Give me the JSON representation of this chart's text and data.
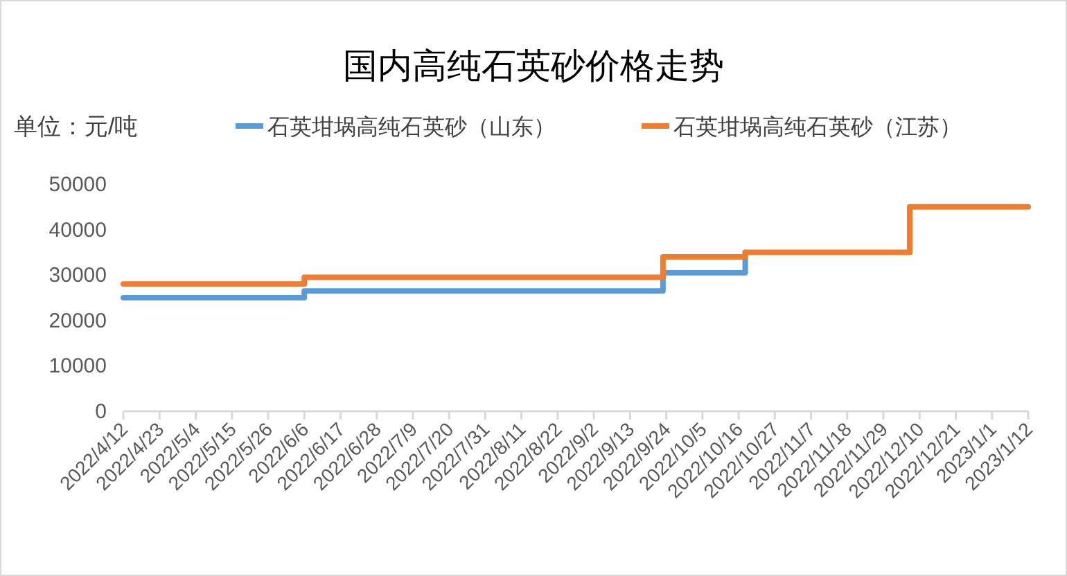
{
  "chart_data": {
    "type": "step",
    "title": "国内高纯石英砂价格走势",
    "annotations": [
      "单位：元/吨"
    ],
    "legend": "top",
    "grid": false,
    "xlim": [
      "2022-04-12",
      "2023-01-12"
    ],
    "xticks": [
      {
        "value": "2022-04-12",
        "label": "2022/4/12"
      },
      {
        "value": "2022-04-23",
        "label": "2022/4/23"
      },
      {
        "value": "2022-05-04",
        "label": "2022/5/4"
      },
      {
        "value": "2022-05-15",
        "label": "2022/5/15"
      },
      {
        "value": "2022-05-26",
        "label": "2022/5/26"
      },
      {
        "value": "2022-06-06",
        "label": "2022/6/6"
      },
      {
        "value": "2022-06-17",
        "label": "2022/6/17"
      },
      {
        "value": "2022-06-28",
        "label": "2022/6/28"
      },
      {
        "value": "2022-07-09",
        "label": "2022/7/9"
      },
      {
        "value": "2022-07-20",
        "label": "2022/7/20"
      },
      {
        "value": "2022-07-31",
        "label": "2022/7/31"
      },
      {
        "value": "2022-08-11",
        "label": "2022/8/11"
      },
      {
        "value": "2022-08-22",
        "label": "2022/8/22"
      },
      {
        "value": "2022-09-02",
        "label": "2022/9/2"
      },
      {
        "value": "2022-09-13",
        "label": "2022/9/13"
      },
      {
        "value": "2022-09-24",
        "label": "2022/9/24"
      },
      {
        "value": "2022-10-05",
        "label": "2022/10/5"
      },
      {
        "value": "2022-10-16",
        "label": "2022/10/16"
      },
      {
        "value": "2022-10-27",
        "label": "2022/10/27"
      },
      {
        "value": "2022-11-07",
        "label": "2022/11/7"
      },
      {
        "value": "2022-11-18",
        "label": "2022/11/18"
      },
      {
        "value": "2022-11-29",
        "label": "2022/11/29"
      },
      {
        "value": "2022-12-10",
        "label": "2022/12/10"
      },
      {
        "value": "2022-12-21",
        "label": "2022/12/21"
      },
      {
        "value": "2023-01-01",
        "label": "2023/1/1"
      },
      {
        "value": "2023-01-12",
        "label": "2023/1/12"
      }
    ],
    "ylim": [
      0,
      50000
    ],
    "yticks": [
      0,
      10000,
      20000,
      30000,
      40000,
      50000
    ],
    "series": [
      {
        "name": "石英坩埚高纯石英砂（山东）",
        "color": "#5b9bd5",
        "x": [
          "2022-04-12",
          "2022-06-06",
          "2022-09-23",
          "2022-10-18"
        ],
        "values": [
          25000,
          26500,
          30500,
          35000
        ]
      },
      {
        "name": "石英坩埚高纯石英砂（江苏）",
        "color": "#ed7d31",
        "x": [
          "2022-04-12",
          "2022-06-06",
          "2022-09-23",
          "2022-10-18",
          "2022-12-07",
          "2023-01-12"
        ],
        "values": [
          28000,
          29500,
          34000,
          35000,
          45000,
          45000
        ]
      }
    ]
  }
}
